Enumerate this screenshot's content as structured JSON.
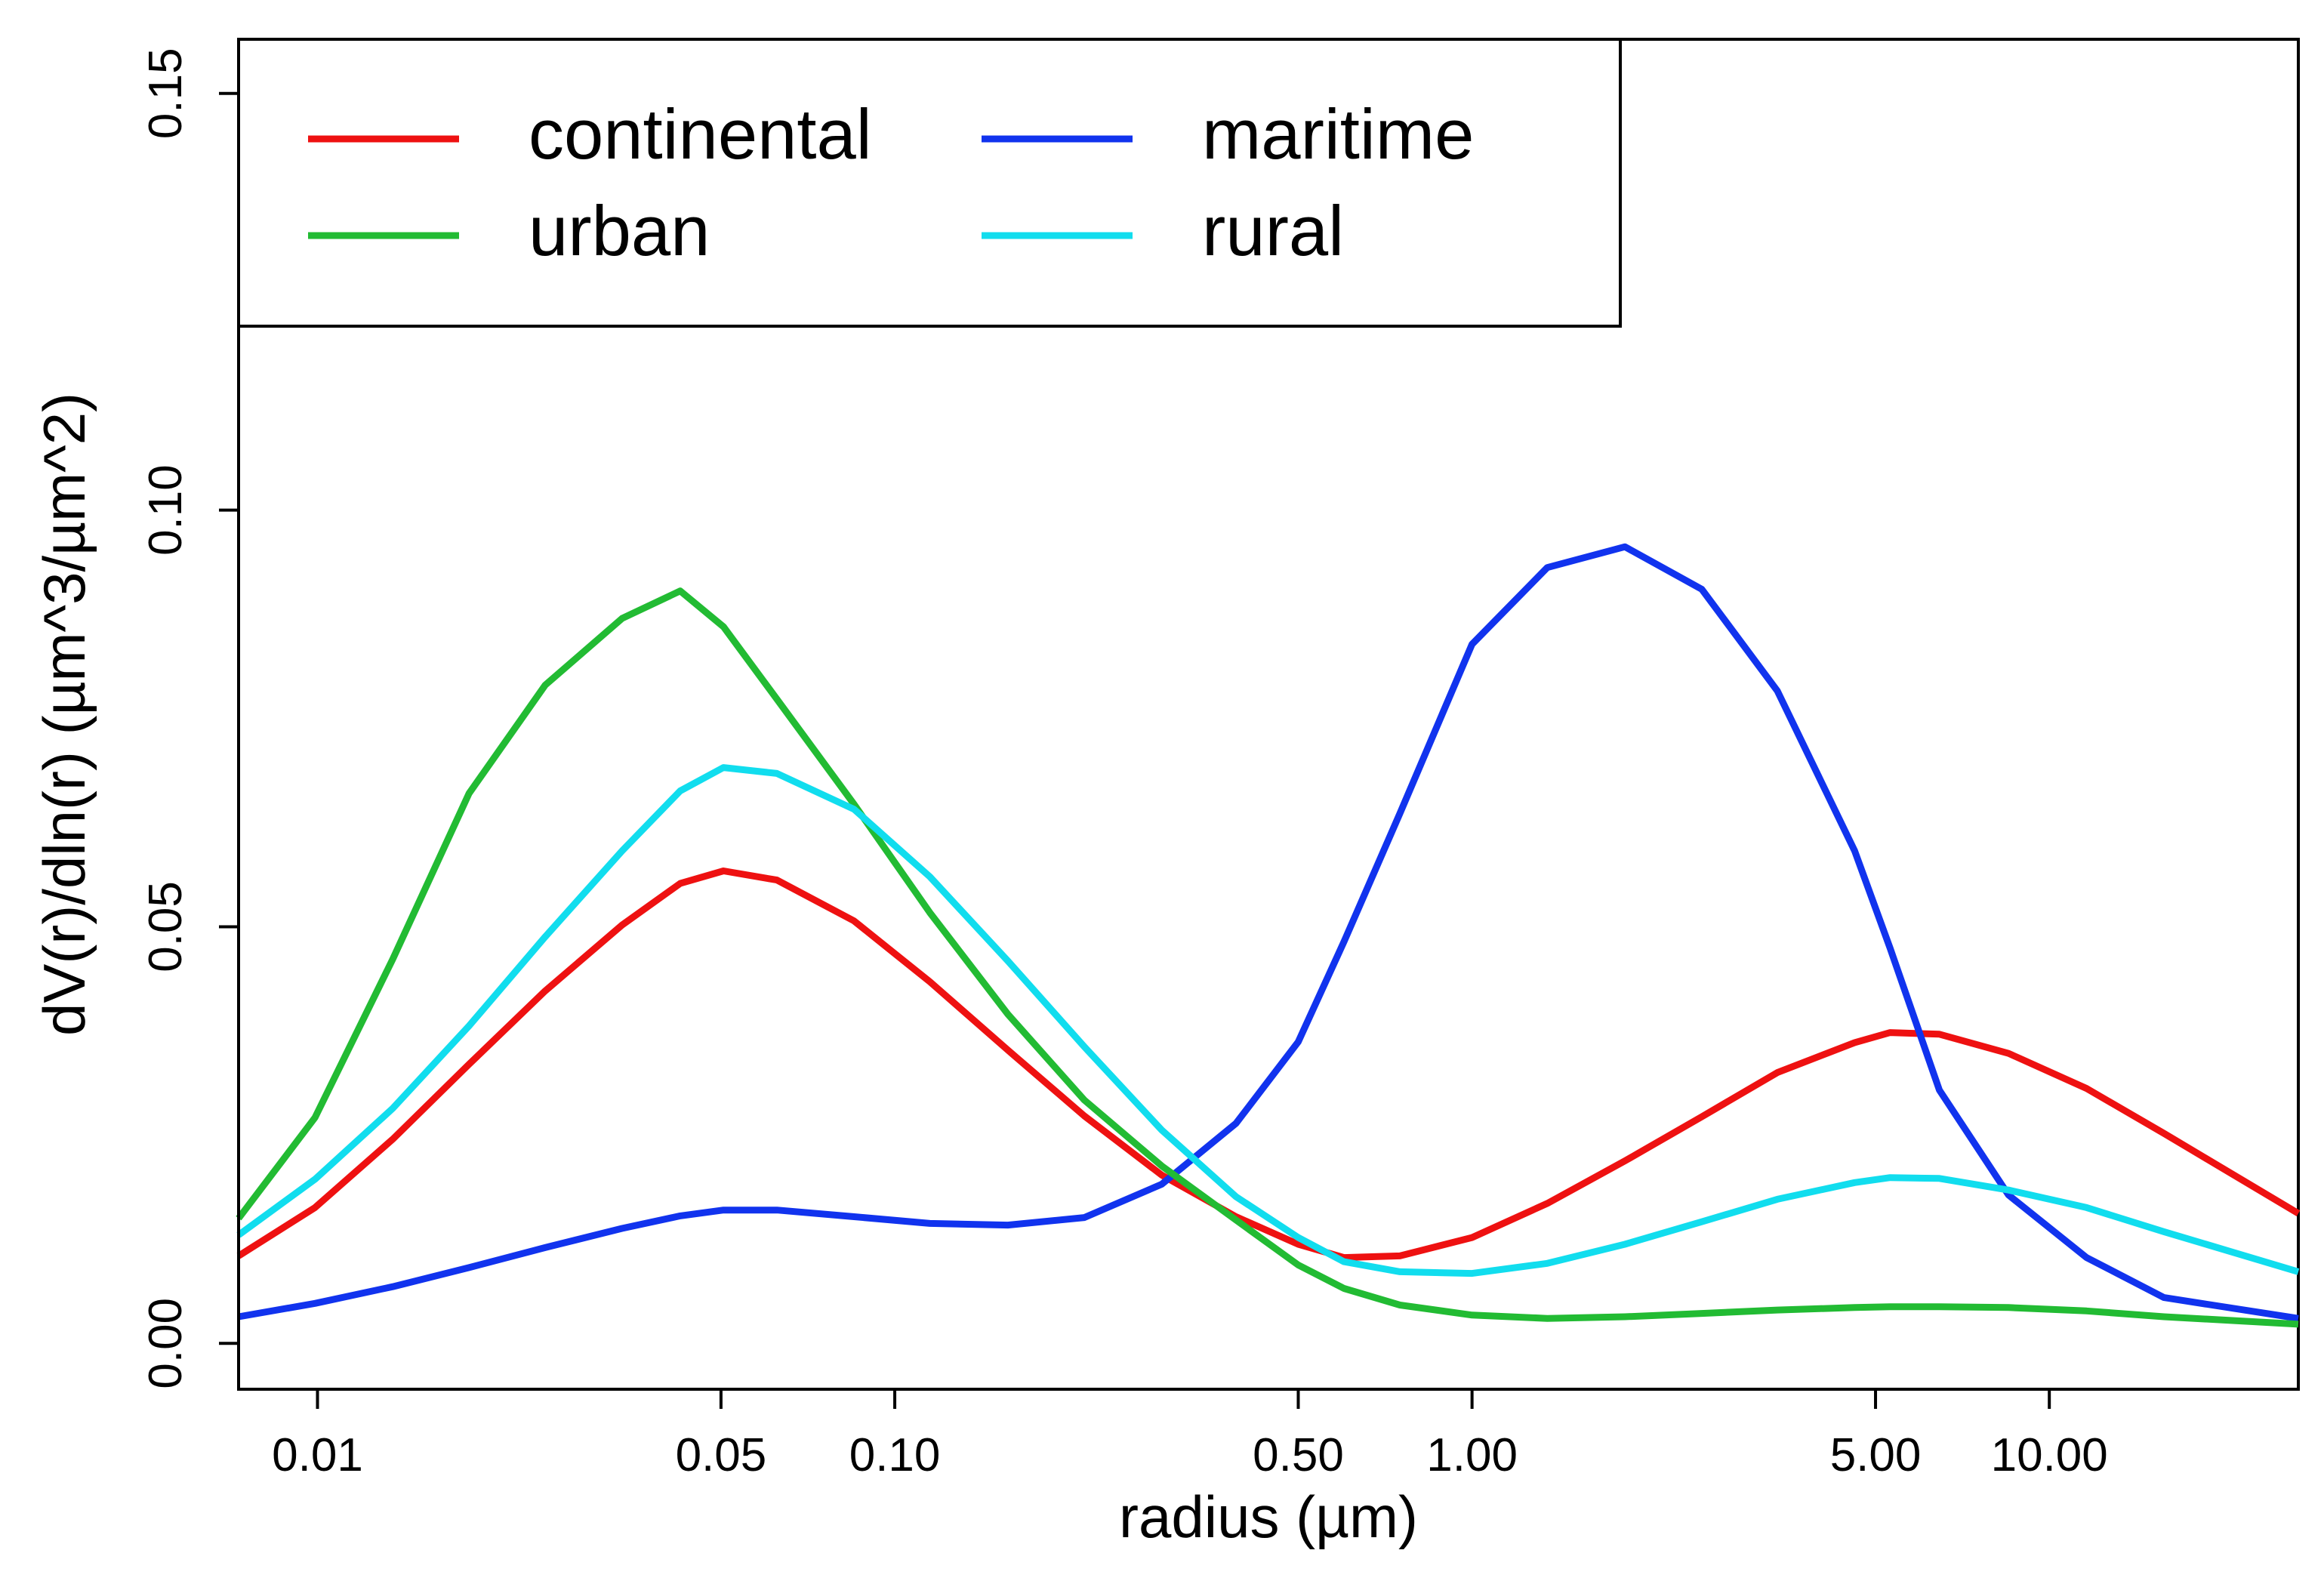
{
  "chart_data": {
    "type": "line",
    "title": "",
    "xlabel": "radius (µm)",
    "ylabel": "dV(r)/dln(r) (µm^3/µm^2)",
    "x_scale": "log",
    "xlim": [
      0.0073,
      27
    ],
    "ylim": [
      -0.0055,
      0.1565
    ],
    "grid": false,
    "legend_position": "top-left",
    "x_ticks": [
      {
        "value": 0.01,
        "label": "0.01"
      },
      {
        "value": 0.05,
        "label": "0.05"
      },
      {
        "value": 0.1,
        "label": "0.10"
      },
      {
        "value": 0.5,
        "label": "0.50"
      },
      {
        "value": 1,
        "label": "1.00"
      },
      {
        "value": 5,
        "label": "5.00"
      },
      {
        "value": 10,
        "label": "10.00"
      }
    ],
    "y_ticks": [
      {
        "value": 0.0,
        "label": "0.00"
      },
      {
        "value": 0.05,
        "label": "0.05"
      },
      {
        "value": 0.1,
        "label": "0.10"
      },
      {
        "value": 0.15,
        "label": "0.15"
      }
    ],
    "series": [
      {
        "name": "continental",
        "color": "#ee1111",
        "x": [
          0.0073,
          0.0099,
          0.0135,
          0.0183,
          0.0248,
          0.0337,
          0.0425,
          0.0505,
          0.0625,
          0.085,
          0.115,
          0.157,
          0.213,
          0.29,
          0.39,
          0.5,
          0.6,
          0.75,
          1.0,
          1.35,
          1.84,
          2.5,
          3.38,
          4.6,
          5.3,
          6.45,
          8.5,
          11.6,
          15.8,
          27
        ],
        "y": [
          0.0105,
          0.0163,
          0.0245,
          0.0335,
          0.0423,
          0.0502,
          0.0552,
          0.0567,
          0.0556,
          0.0507,
          0.0434,
          0.0352,
          0.0273,
          0.0202,
          0.0152,
          0.0119,
          0.0103,
          0.0105,
          0.0127,
          0.0168,
          0.0219,
          0.0272,
          0.0325,
          0.0361,
          0.0373,
          0.0371,
          0.0348,
          0.0306,
          0.0252,
          0.0156
        ]
      },
      {
        "name": "maritime",
        "color": "#1133ee",
        "x": [
          0.0073,
          0.0099,
          0.0135,
          0.0183,
          0.0248,
          0.0337,
          0.0425,
          0.0505,
          0.0625,
          0.085,
          0.115,
          0.157,
          0.213,
          0.29,
          0.39,
          0.5,
          0.6,
          0.75,
          1.0,
          1.35,
          1.84,
          2.5,
          3.38,
          4.6,
          5.3,
          6.45,
          8.5,
          11.6,
          15.8,
          27
        ],
        "y": [
          0.0032,
          0.0048,
          0.0068,
          0.0091,
          0.0115,
          0.0138,
          0.0153,
          0.016,
          0.016,
          0.0152,
          0.0144,
          0.0142,
          0.0151,
          0.0191,
          0.0264,
          0.0362,
          0.0482,
          0.0636,
          0.0839,
          0.0931,
          0.0956,
          0.0905,
          0.0783,
          0.0591,
          0.0474,
          0.0304,
          0.0178,
          0.0103,
          0.0055,
          0.003
        ]
      },
      {
        "name": "urban",
        "color": "#22bb33",
        "x": [
          0.0073,
          0.0099,
          0.0135,
          0.0183,
          0.0248,
          0.0337,
          0.0425,
          0.0505,
          0.0625,
          0.085,
          0.115,
          0.157,
          0.213,
          0.29,
          0.39,
          0.5,
          0.6,
          0.75,
          1.0,
          1.35,
          1.84,
          2.5,
          3.38,
          4.6,
          5.3,
          6.45,
          8.5,
          11.6,
          15.8,
          27
        ],
        "y": [
          0.015,
          0.0271,
          0.0461,
          0.066,
          0.079,
          0.087,
          0.0903,
          0.086,
          0.0773,
          0.0647,
          0.0517,
          0.0395,
          0.0292,
          0.0213,
          0.0148,
          0.0094,
          0.0066,
          0.0046,
          0.0034,
          0.003,
          0.0032,
          0.0036,
          0.004,
          0.0043,
          0.0044,
          0.0044,
          0.0043,
          0.0039,
          0.0032,
          0.0023
        ]
      },
      {
        "name": "rural",
        "color": "#11ddee",
        "x": [
          0.0073,
          0.0099,
          0.0135,
          0.0183,
          0.0248,
          0.0337,
          0.0425,
          0.0505,
          0.0625,
          0.085,
          0.115,
          0.157,
          0.213,
          0.29,
          0.39,
          0.5,
          0.6,
          0.75,
          1.0,
          1.35,
          1.84,
          2.5,
          3.38,
          4.6,
          5.3,
          6.45,
          8.5,
          11.6,
          15.8,
          27
        ],
        "y": [
          0.013,
          0.0197,
          0.0282,
          0.0381,
          0.0488,
          0.0591,
          0.0663,
          0.0691,
          0.0684,
          0.0641,
          0.056,
          0.0459,
          0.0356,
          0.0256,
          0.0176,
          0.0127,
          0.0098,
          0.0086,
          0.0084,
          0.0096,
          0.0119,
          0.0146,
          0.0173,
          0.0193,
          0.0199,
          0.0198,
          0.0184,
          0.0163,
          0.0134,
          0.0086
        ]
      }
    ]
  }
}
